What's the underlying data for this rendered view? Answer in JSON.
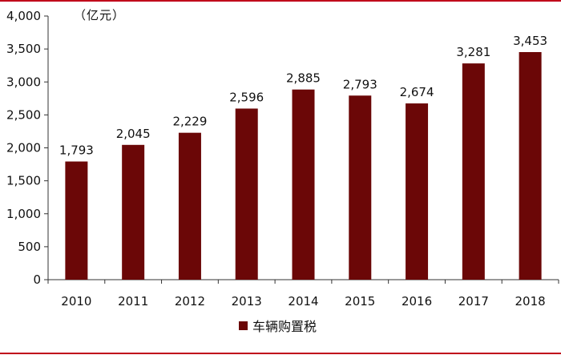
{
  "colors": {
    "bar": "#6b0707",
    "frame_line": "#c0001a",
    "axis": "#333333",
    "text": "#111111"
  },
  "unit_label": "（亿元）",
  "legend": {
    "label": "车辆购置税"
  },
  "chart_data": {
    "type": "bar",
    "categories": [
      "2010",
      "2011",
      "2012",
      "2013",
      "2014",
      "2015",
      "2016",
      "2017",
      "2018"
    ],
    "series": [
      {
        "name": "车辆购置税",
        "values": [
          1793,
          2045,
          2229,
          2596,
          2885,
          2793,
          2674,
          3281,
          3453
        ]
      }
    ],
    "data_labels": [
      "1,793",
      "2,045",
      "2,229",
      "2,596",
      "2,885",
      "2,793",
      "2,674",
      "3,281",
      "3,453"
    ],
    "y_ticks": [
      0,
      500,
      1000,
      1500,
      2000,
      2500,
      3000,
      3500,
      4000
    ],
    "y_tick_labels": [
      "0",
      "500",
      "1,000",
      "1,500",
      "2,000",
      "2,500",
      "3,000",
      "3,500",
      "4,000"
    ],
    "ylim": [
      0,
      4000
    ],
    "grid": false,
    "legend_position": "bottom-center"
  }
}
